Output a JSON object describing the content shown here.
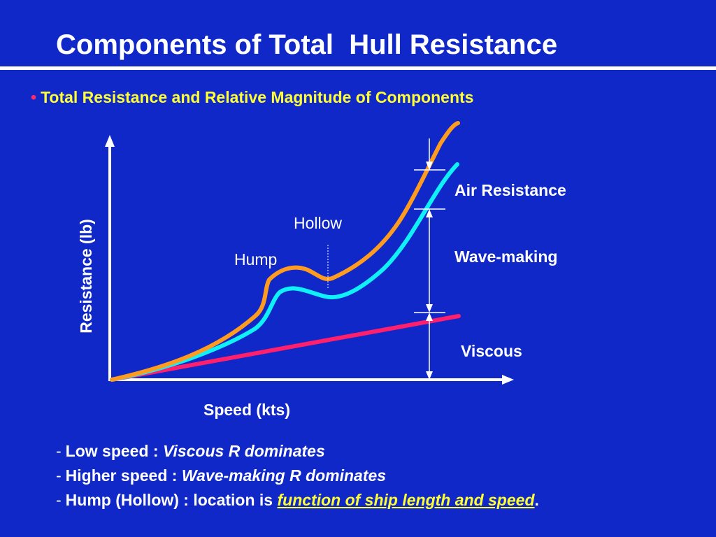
{
  "title": "Components of Total  Hull Resistance",
  "subtitle": "Total Resistance and Relative Magnitude of Components",
  "diagram": {
    "y_axis_label": "Resistance (lb)",
    "x_axis_label": "Speed (kts)",
    "annotations": {
      "hump": "Hump",
      "hollow": "Hollow"
    },
    "components": {
      "air": "Air Resistance",
      "wave": "Wave-making",
      "viscous": "Viscous"
    },
    "colors": {
      "total": "#ff9b1f",
      "wave_curve": "#10f0f8",
      "viscous_line": "#ff1f6d",
      "axes": "#ffffff"
    }
  },
  "bullets": [
    {
      "dash": "-",
      "prefix": "Low speed : ",
      "emphasis": "Viscous R dominates",
      "suffix": ""
    },
    {
      "dash": "-",
      "prefix": "Higher speed : ",
      "emphasis": "Wave-making R dominates",
      "suffix": ""
    },
    {
      "dash": "-",
      "prefix": "Hump (Hollow) : location is ",
      "emphasis": "function of ship length and speed",
      "suffix": "."
    }
  ]
}
